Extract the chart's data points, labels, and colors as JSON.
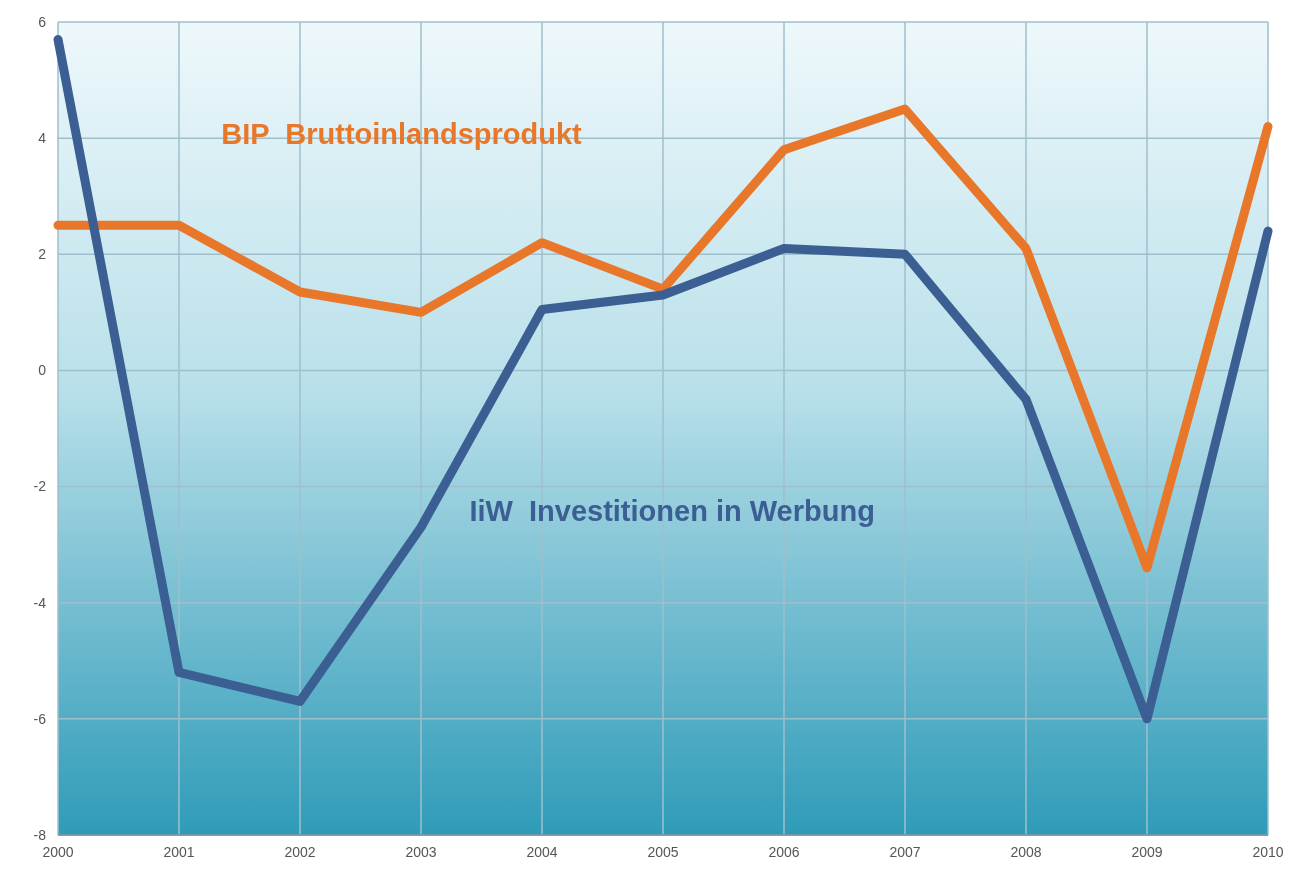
{
  "chart_data": {
    "type": "line",
    "x": [
      2000,
      2001,
      2002,
      2003,
      2004,
      2005,
      2006,
      2007,
      2008,
      2009,
      2010
    ],
    "series": [
      {
        "name": "BIP  Bruttoinlandsprodukt",
        "color": "#e8772a",
        "values": [
          2.5,
          2.5,
          1.35,
          1.0,
          2.2,
          1.4,
          3.8,
          4.5,
          2.1,
          -3.4,
          4.2
        ]
      },
      {
        "name": "IiW  Investitionen in Werbung",
        "color": "#3b5e93",
        "values": [
          5.7,
          -5.2,
          -5.7,
          -2.7,
          1.05,
          1.3,
          2.1,
          2.0,
          -0.5,
          -6.0,
          2.4
        ]
      }
    ],
    "xlim": [
      2000,
      2010
    ],
    "xticks": [
      2000,
      2001,
      2002,
      2003,
      2004,
      2005,
      2006,
      2007,
      2008,
      2009,
      2010
    ],
    "ylim": [
      -8,
      6
    ],
    "yticks": [
      -8,
      -6,
      -4,
      -2,
      0,
      2,
      4,
      6
    ],
    "grid": true,
    "legend": false,
    "marker": "none",
    "line_style": "solid"
  }
}
